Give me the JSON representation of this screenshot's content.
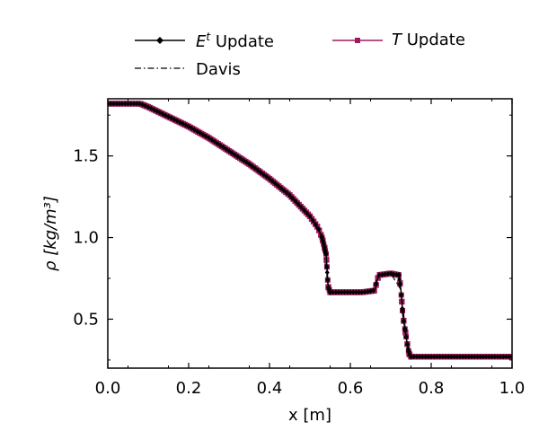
{
  "chart_data": {
    "type": "line",
    "xlabel": "x [m]",
    "ylabel": "ρ [kg/m³]",
    "xlim": [
      0.0,
      1.0
    ],
    "ylim": [
      0.2,
      1.85
    ],
    "xticks": [
      "0.0",
      "0.2",
      "0.4",
      "0.6",
      "0.8",
      "1.0"
    ],
    "yticks": [
      "0.5",
      "1.0",
      "1.5"
    ],
    "grid": false,
    "legend_position": "top",
    "series": [
      {
        "name": "E^t Update",
        "legend_main": "E",
        "legend_sup": "t",
        "legend_rest": " Update",
        "color": "#000000",
        "marker": "diamond",
        "style": "solid",
        "x": [
          0.0,
          0.05,
          0.08,
          0.1,
          0.15,
          0.2,
          0.25,
          0.3,
          0.35,
          0.4,
          0.45,
          0.5,
          0.52,
          0.53,
          0.54,
          0.545,
          0.55,
          0.6,
          0.63,
          0.66,
          0.67,
          0.7,
          0.72,
          0.725,
          0.73,
          0.74,
          0.745,
          0.75,
          0.8,
          0.9,
          1.0
        ],
        "y": [
          1.82,
          1.82,
          1.82,
          1.8,
          1.74,
          1.68,
          1.61,
          1.53,
          1.45,
          1.36,
          1.26,
          1.13,
          1.06,
          1.0,
          0.9,
          0.7,
          0.665,
          0.665,
          0.665,
          0.675,
          0.77,
          0.78,
          0.77,
          0.68,
          0.52,
          0.36,
          0.29,
          0.27,
          0.27,
          0.27,
          0.27
        ]
      },
      {
        "name": "T Update",
        "legend_main": "T",
        "legend_rest": " Update",
        "color": "#a21a5e",
        "marker": "square",
        "style": "solid",
        "x": [
          0.0,
          0.05,
          0.08,
          0.1,
          0.15,
          0.2,
          0.25,
          0.3,
          0.35,
          0.4,
          0.45,
          0.5,
          0.52,
          0.53,
          0.54,
          0.545,
          0.55,
          0.6,
          0.63,
          0.66,
          0.67,
          0.7,
          0.72,
          0.725,
          0.73,
          0.74,
          0.745,
          0.75,
          0.8,
          0.9,
          1.0
        ],
        "y": [
          1.82,
          1.82,
          1.82,
          1.8,
          1.74,
          1.68,
          1.61,
          1.53,
          1.45,
          1.36,
          1.26,
          1.13,
          1.06,
          1.0,
          0.9,
          0.7,
          0.665,
          0.665,
          0.665,
          0.675,
          0.77,
          0.78,
          0.77,
          0.68,
          0.52,
          0.36,
          0.29,
          0.27,
          0.27,
          0.27,
          0.27
        ]
      },
      {
        "name": "Davis",
        "color": "#000000",
        "marker": "none",
        "style": "dashdot",
        "x": [
          0.0,
          0.08,
          0.1,
          0.2,
          0.3,
          0.4,
          0.5,
          0.53,
          0.545,
          0.55,
          0.65,
          0.67,
          0.7,
          0.725,
          0.74,
          0.75,
          1.0
        ],
        "y": [
          1.82,
          1.82,
          1.8,
          1.68,
          1.53,
          1.36,
          1.13,
          1.0,
          0.7,
          0.665,
          0.665,
          0.77,
          0.78,
          0.68,
          0.36,
          0.27,
          0.27
        ]
      }
    ]
  }
}
